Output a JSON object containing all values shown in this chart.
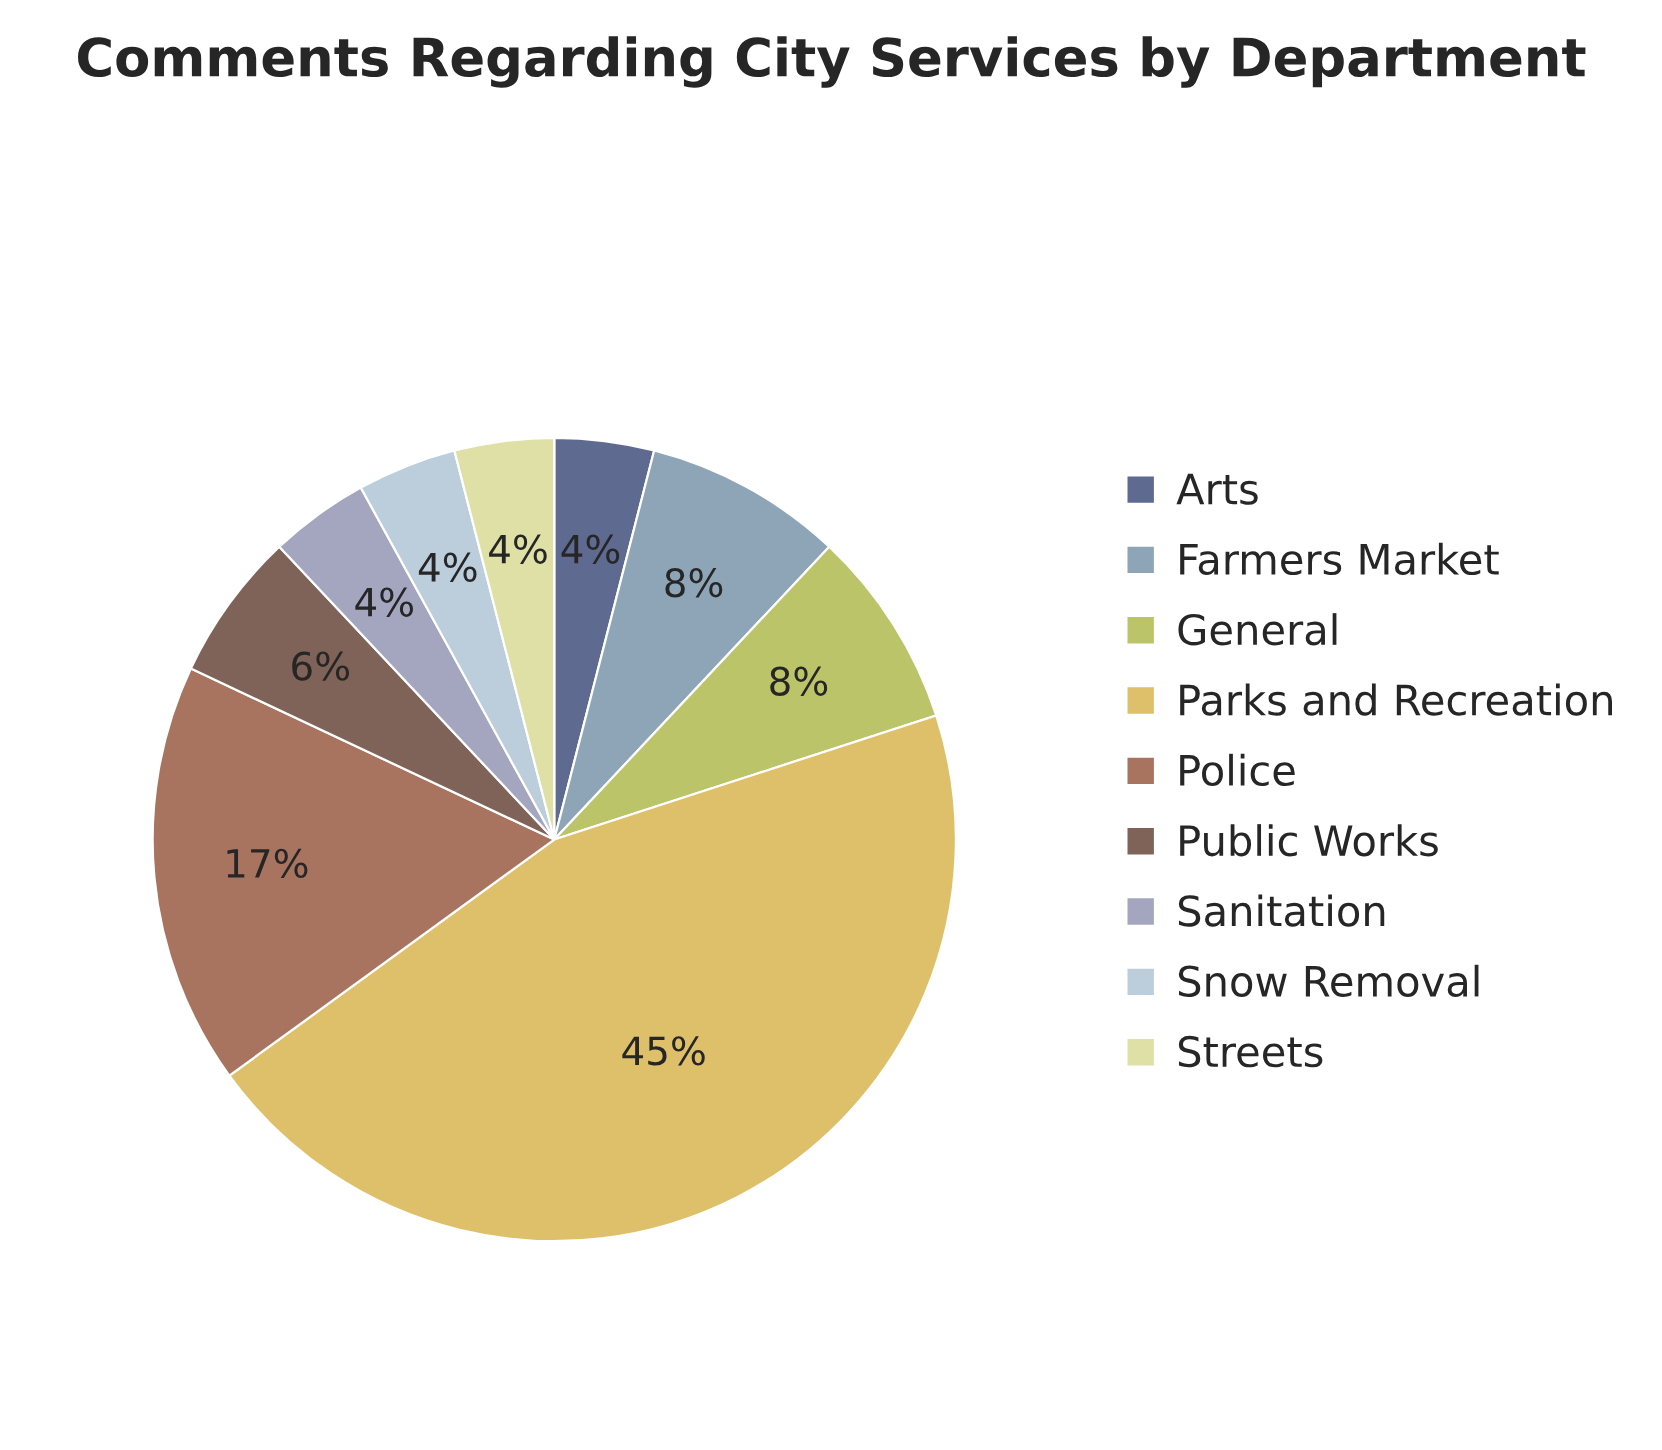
{
  "chart_data": {
    "type": "pie",
    "title": "Comments Regarding City Services by Department",
    "categories": [
      "Arts",
      "Farmers Market",
      "General",
      "Parks and Recreation",
      "Police",
      "Public Works",
      "Sanitation",
      "Snow Removal",
      "Streets"
    ],
    "values": [
      4,
      8,
      8,
      45,
      17,
      6,
      4,
      4,
      4
    ],
    "colors": [
      "#5f6a90",
      "#8ea5b8",
      "#bcc46a",
      "#dfc06a",
      "#a87460",
      "#7f6358",
      "#a4a6c0",
      "#bccddb",
      "#dfe0a6"
    ],
    "value_labels": [
      "4%",
      "8%",
      "8%",
      "45%",
      "17%",
      "6%",
      "4%",
      "4%",
      "4%"
    ],
    "legend": "right"
  }
}
